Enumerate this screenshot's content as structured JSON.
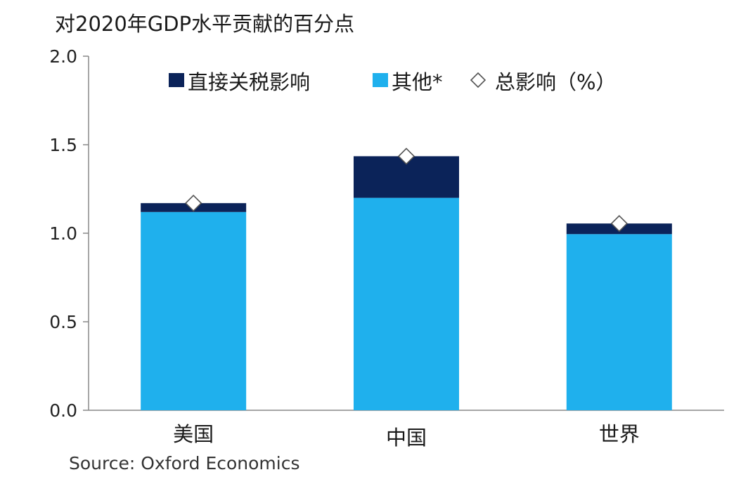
{
  "chart_data": {
    "type": "bar",
    "stacked": true,
    "title": "对2020年GDP水平贡献的百分点",
    "categories": [
      "美国",
      "中国",
      "世界"
    ],
    "series": [
      {
        "name": "其他*",
        "color": "#1fb0ed",
        "values": [
          1.12,
          1.2,
          0.995
        ]
      },
      {
        "name": "直接关税影响",
        "color": "#0b2359",
        "values": [
          0.05,
          0.235,
          0.06
        ]
      }
    ],
    "total_series": {
      "name": "总影响（%）",
      "marker": "diamond",
      "values": [
        1.17,
        1.435,
        1.055
      ]
    },
    "ylim": [
      0,
      2.0
    ],
    "yticks": [
      "0.0",
      "0.5",
      "1.0",
      "1.5",
      "2.0"
    ],
    "ytick_values": [
      0,
      0.5,
      1.0,
      1.5,
      2.0
    ],
    "grid": false,
    "legend_position": "top",
    "xlabel": "",
    "ylabel": ""
  },
  "source": "Source: Oxford Economics"
}
